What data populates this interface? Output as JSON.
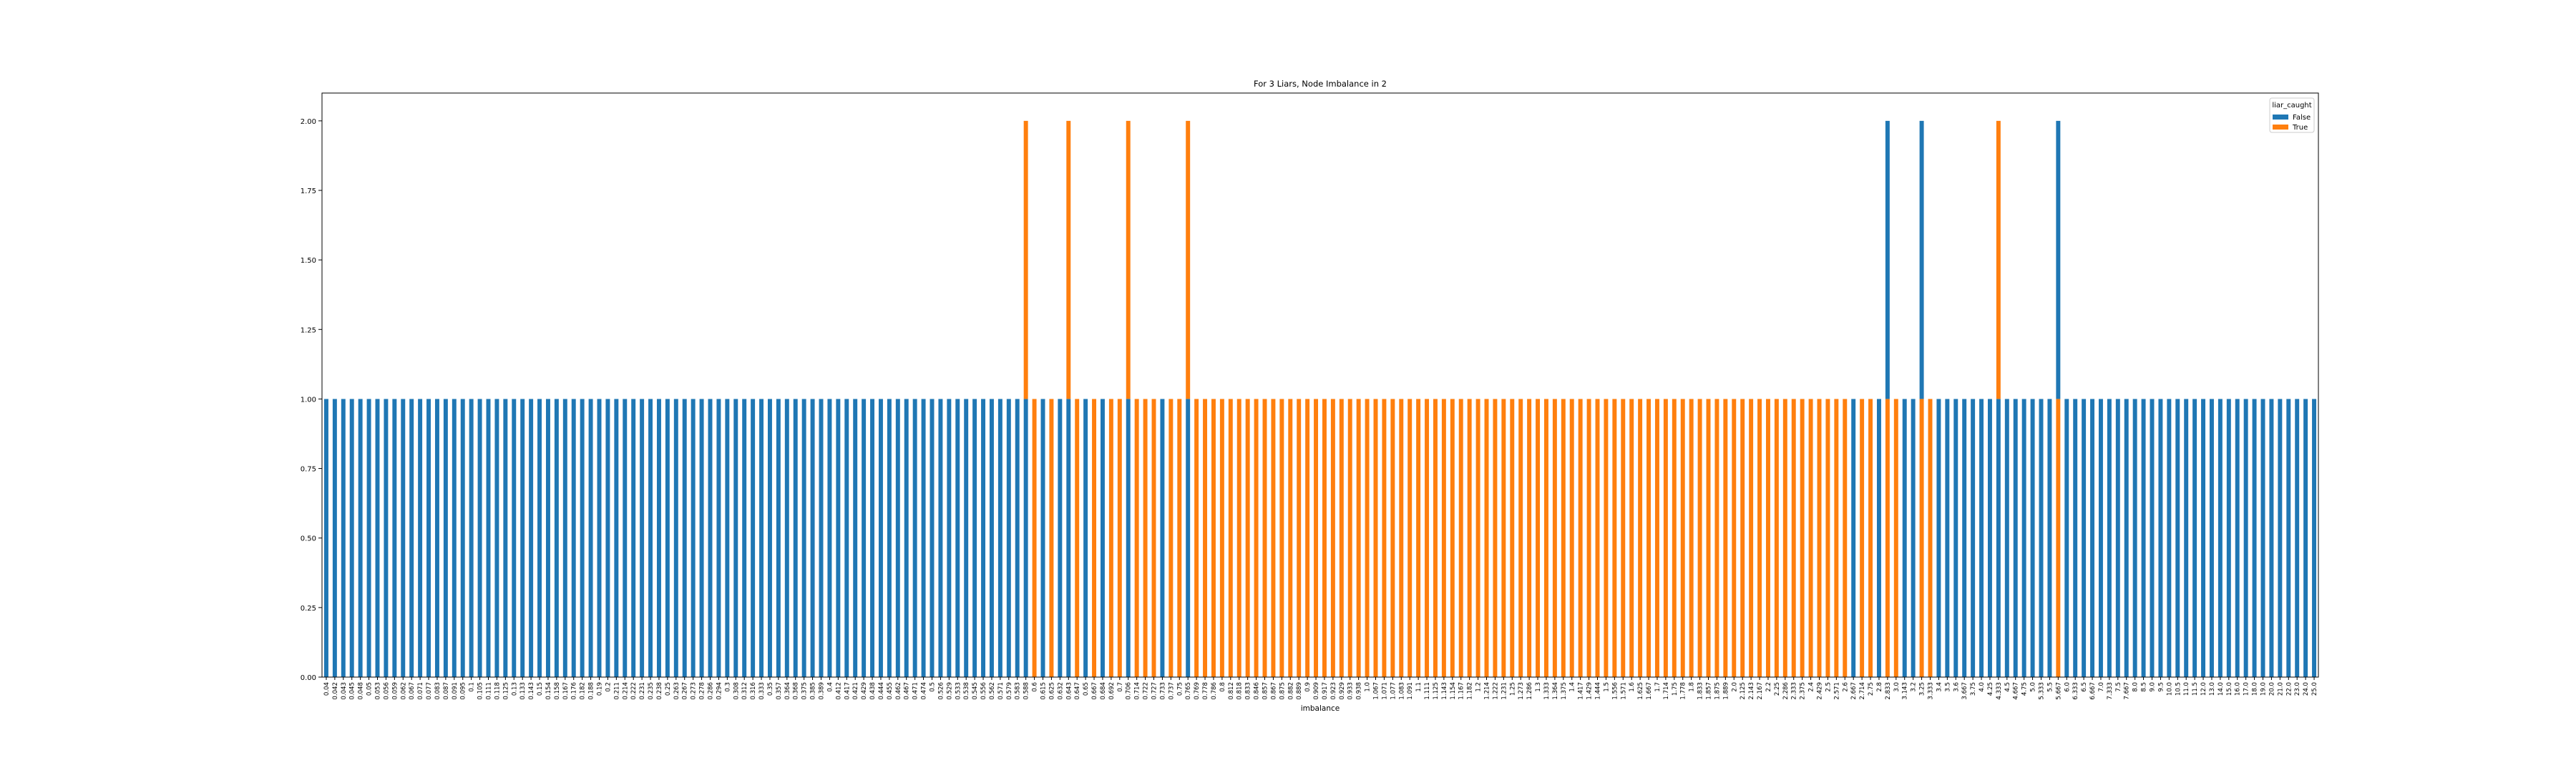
{
  "chart_data": {
    "type": "bar",
    "title": "For 3 Liars, Node Imbalance in 2",
    "xlabel": "imbalance",
    "ylabel": "",
    "ylim": [
      0,
      2.1
    ],
    "yticks": [
      "0.00",
      "0.25",
      "0.50",
      "0.75",
      "1.00",
      "1.25",
      "1.50",
      "1.75",
      "2.00"
    ],
    "grid": false,
    "legend": {
      "title": "liar_caught",
      "position": "top-right"
    },
    "colors": {
      "False": "#1f77b4",
      "True": "#ff7f0e"
    },
    "series": [
      {
        "name": "False",
        "color": "#1f77b4"
      },
      {
        "name": "True",
        "color": "#ff7f0e"
      }
    ],
    "categories": [
      "0.04",
      "0.042",
      "0.043",
      "0.045",
      "0.048",
      "0.05",
      "0.053",
      "0.056",
      "0.059",
      "0.062",
      "0.067",
      "0.071",
      "0.077",
      "0.083",
      "0.087",
      "0.091",
      "0.095",
      "0.1",
      "0.105",
      "0.111",
      "0.118",
      "0.125",
      "0.13",
      "0.133",
      "0.143",
      "0.15",
      "0.154",
      "0.158",
      "0.167",
      "0.176",
      "0.182",
      "0.188",
      "0.19",
      "0.2",
      "0.211",
      "0.214",
      "0.222",
      "0.231",
      "0.235",
      "0.238",
      "0.25",
      "0.263",
      "0.267",
      "0.273",
      "0.278",
      "0.286",
      "0.294",
      "0.3",
      "0.308",
      "0.312",
      "0.316",
      "0.333",
      "0.35",
      "0.357",
      "0.364",
      "0.368",
      "0.375",
      "0.385",
      "0.389",
      "0.4",
      "0.412",
      "0.417",
      "0.421",
      "0.429",
      "0.438",
      "0.444",
      "0.455",
      "0.462",
      "0.467",
      "0.471",
      "0.474",
      "0.5",
      "0.526",
      "0.529",
      "0.533",
      "0.538",
      "0.545",
      "0.556",
      "0.562",
      "0.571",
      "0.579",
      "0.583",
      "0.588",
      "0.6",
      "0.615",
      "0.625",
      "0.632",
      "0.643",
      "0.647",
      "0.65",
      "0.667",
      "0.684",
      "0.692",
      "0.7",
      "0.706",
      "0.714",
      "0.722",
      "0.727",
      "0.733",
      "0.737",
      "0.75",
      "0.765",
      "0.769",
      "0.778",
      "0.786",
      "0.8",
      "0.812",
      "0.818",
      "0.833",
      "0.846",
      "0.857",
      "0.867",
      "0.875",
      "0.882",
      "0.889",
      "0.9",
      "0.909",
      "0.917",
      "0.923",
      "0.929",
      "0.933",
      "0.938",
      "1.0",
      "1.067",
      "1.071",
      "1.077",
      "1.083",
      "1.091",
      "1.1",
      "1.111",
      "1.125",
      "1.143",
      "1.154",
      "1.167",
      "1.182",
      "1.2",
      "1.214",
      "1.222",
      "1.231",
      "1.25",
      "1.273",
      "1.286",
      "1.3",
      "1.333",
      "1.364",
      "1.375",
      "1.4",
      "1.417",
      "1.429",
      "1.444",
      "1.5",
      "1.556",
      "1.571",
      "1.6",
      "1.625",
      "1.667",
      "1.7",
      "1.714",
      "1.75",
      "1.778",
      "1.8",
      "1.833",
      "1.857",
      "1.875",
      "1.889",
      "2.0",
      "2.125",
      "2.143",
      "2.167",
      "2.2",
      "2.25",
      "2.286",
      "2.333",
      "2.375",
      "2.4",
      "2.429",
      "2.5",
      "2.571",
      "2.6",
      "2.667",
      "2.714",
      "2.75",
      "2.8",
      "2.833",
      "3.0",
      "3.143",
      "3.2",
      "3.25",
      "3.333",
      "3.4",
      "3.5",
      "3.6",
      "3.667",
      "3.75",
      "4.0",
      "4.25",
      "4.333",
      "4.5",
      "4.667",
      "4.75",
      "5.0",
      "5.333",
      "5.5",
      "5.667",
      "6.0",
      "6.333",
      "6.5",
      "6.667",
      "7.0",
      "7.333",
      "7.5",
      "7.667",
      "8.0",
      "8.5",
      "9.0",
      "9.5",
      "10.0",
      "10.5",
      "11.0",
      "11.5",
      "12.0",
      "13.0",
      "14.0",
      "15.0",
      "16.0",
      "17.0",
      "18.0",
      "19.0",
      "20.0",
      "21.0",
      "22.0",
      "23.0",
      "24.0",
      "25.0"
    ],
    "stacks": [
      [
        "F",
        "1"
      ],
      [
        "F",
        "1"
      ],
      [
        "F",
        "1"
      ],
      [
        "F",
        "1"
      ],
      [
        "F",
        "1"
      ],
      [
        "F",
        "1"
      ],
      [
        "F",
        "1"
      ],
      [
        "F",
        "1"
      ],
      [
        "F",
        "1"
      ],
      [
        "F",
        "1"
      ],
      [
        "F",
        "1"
      ],
      [
        "F",
        "1"
      ],
      [
        "F",
        "1"
      ],
      [
        "F",
        "1"
      ],
      [
        "F",
        "1"
      ],
      [
        "F",
        "1"
      ],
      [
        "F",
        "1"
      ],
      [
        "F",
        "1"
      ],
      [
        "F",
        "1"
      ],
      [
        "F",
        "1"
      ],
      [
        "F",
        "1"
      ],
      [
        "F",
        "1"
      ],
      [
        "F",
        "1"
      ],
      [
        "F",
        "1"
      ],
      [
        "F",
        "1"
      ],
      [
        "F",
        "1"
      ],
      [
        "F",
        "1"
      ],
      [
        "F",
        "1"
      ],
      [
        "F",
        "1"
      ],
      [
        "F",
        "1"
      ],
      [
        "F",
        "1"
      ],
      [
        "F",
        "1"
      ],
      [
        "F",
        "1"
      ],
      [
        "F",
        "1"
      ],
      [
        "F",
        "1"
      ],
      [
        "F",
        "1"
      ],
      [
        "F",
        "1"
      ],
      [
        "F",
        "1"
      ],
      [
        "F",
        "1"
      ],
      [
        "F",
        "1"
      ],
      [
        "F",
        "1"
      ],
      [
        "F",
        "1"
      ],
      [
        "F",
        "1"
      ],
      [
        "F",
        "1"
      ],
      [
        "F",
        "1"
      ],
      [
        "F",
        "1"
      ],
      [
        "F",
        "1"
      ],
      [
        "F",
        "1"
      ],
      [
        "F",
        "1"
      ],
      [
        "F",
        "1"
      ],
      [
        "F",
        "1"
      ],
      [
        "F",
        "1"
      ],
      [
        "F",
        "1"
      ],
      [
        "F",
        "1"
      ],
      [
        "F",
        "1"
      ],
      [
        "F",
        "1"
      ],
      [
        "F",
        "1"
      ],
      [
        "F",
        "1"
      ],
      [
        "F",
        "1"
      ],
      [
        "F",
        "1"
      ],
      [
        "F",
        "1"
      ],
      [
        "F",
        "1"
      ],
      [
        "F",
        "1"
      ],
      [
        "F",
        "1"
      ],
      [
        "F",
        "1"
      ],
      [
        "F",
        "1"
      ],
      [
        "F",
        "1"
      ],
      [
        "F",
        "1"
      ],
      [
        "F",
        "1"
      ],
      [
        "F",
        "1"
      ],
      [
        "F",
        "1"
      ],
      [
        "F",
        "1"
      ],
      [
        "F",
        "1"
      ],
      [
        "F",
        "1"
      ],
      [
        "F",
        "1"
      ],
      [
        "F",
        "1"
      ],
      [
        "F",
        "1"
      ],
      [
        "F",
        "1"
      ],
      [
        "F",
        "1"
      ],
      [
        "F",
        "1"
      ],
      [
        "F",
        "1"
      ],
      [
        "F",
        "1"
      ],
      [
        "F",
        "1",
        "T",
        "1"
      ],
      [
        "T",
        "1"
      ],
      [
        "F",
        "1"
      ],
      [
        "T",
        "1"
      ],
      [
        "F",
        "1"
      ],
      [
        "F",
        "1",
        "T",
        "1"
      ],
      [
        "T",
        "1"
      ],
      [
        "F",
        "1"
      ],
      [
        "T",
        "1"
      ],
      [
        "F",
        "1"
      ],
      [
        "T",
        "1"
      ],
      [
        "T",
        "1"
      ],
      [
        "F",
        "1",
        "T",
        "1"
      ],
      [
        "T",
        "1"
      ],
      [
        "T",
        "1"
      ],
      [
        "T",
        "1"
      ],
      [
        "F",
        "1"
      ],
      [
        "T",
        "1"
      ],
      [
        "T",
        "1"
      ],
      [
        "F",
        "1",
        "T",
        "1"
      ],
      [
        "T",
        "1"
      ],
      [
        "T",
        "1"
      ],
      [
        "T",
        "1"
      ],
      [
        "T",
        "1"
      ],
      [
        "T",
        "1"
      ],
      [
        "T",
        "1"
      ],
      [
        "T",
        "1"
      ],
      [
        "T",
        "1"
      ],
      [
        "T",
        "1"
      ],
      [
        "T",
        "1"
      ],
      [
        "T",
        "1"
      ],
      [
        "T",
        "1"
      ],
      [
        "T",
        "1"
      ],
      [
        "T",
        "1"
      ],
      [
        "T",
        "1"
      ],
      [
        "T",
        "1"
      ],
      [
        "T",
        "1"
      ],
      [
        "T",
        "1"
      ],
      [
        "T",
        "1"
      ],
      [
        "T",
        "1"
      ],
      [
        "T",
        "1"
      ],
      [
        "T",
        "1"
      ],
      [
        "T",
        "1"
      ],
      [
        "T",
        "1"
      ],
      [
        "T",
        "1"
      ],
      [
        "T",
        "1"
      ],
      [
        "T",
        "1"
      ],
      [
        "T",
        "1"
      ],
      [
        "T",
        "1"
      ],
      [
        "T",
        "1"
      ],
      [
        "T",
        "1"
      ],
      [
        "T",
        "1"
      ],
      [
        "T",
        "1"
      ],
      [
        "T",
        "1"
      ],
      [
        "T",
        "1"
      ],
      [
        "T",
        "1"
      ],
      [
        "T",
        "1"
      ],
      [
        "T",
        "1"
      ],
      [
        "T",
        "1"
      ],
      [
        "T",
        "1"
      ],
      [
        "T",
        "1"
      ],
      [
        "T",
        "1"
      ],
      [
        "T",
        "1"
      ],
      [
        "T",
        "1"
      ],
      [
        "T",
        "1"
      ],
      [
        "T",
        "1"
      ],
      [
        "T",
        "1"
      ],
      [
        "T",
        "1"
      ],
      [
        "T",
        "1"
      ],
      [
        "T",
        "1"
      ],
      [
        "T",
        "1"
      ],
      [
        "T",
        "1"
      ],
      [
        "T",
        "1"
      ],
      [
        "T",
        "1"
      ],
      [
        "T",
        "1"
      ],
      [
        "T",
        "1"
      ],
      [
        "T",
        "1"
      ],
      [
        "T",
        "1"
      ],
      [
        "T",
        "1"
      ],
      [
        "T",
        "1"
      ],
      [
        "T",
        "1"
      ],
      [
        "T",
        "1"
      ],
      [
        "T",
        "1"
      ],
      [
        "T",
        "1"
      ],
      [
        "T",
        "1"
      ],
      [
        "T",
        "1"
      ],
      [
        "T",
        "1"
      ],
      [
        "T",
        "1"
      ],
      [
        "T",
        "1"
      ],
      [
        "T",
        "1"
      ],
      [
        "T",
        "1"
      ],
      [
        "T",
        "1"
      ],
      [
        "T",
        "1"
      ],
      [
        "T",
        "1"
      ],
      [
        "T",
        "1"
      ],
      [
        "T",
        "1"
      ],
      [
        "T",
        "1"
      ],
      [
        "F",
        "1"
      ],
      [
        "T",
        "1"
      ],
      [
        "T",
        "1"
      ],
      [
        "F",
        "1"
      ],
      [
        "T",
        "1",
        "F",
        "1"
      ],
      [
        "T",
        "1"
      ],
      [
        "F",
        "1"
      ],
      [
        "F",
        "1"
      ],
      [
        "T",
        "1",
        "F",
        "1"
      ],
      [
        "T",
        "1"
      ],
      [
        "F",
        "1"
      ],
      [
        "F",
        "1"
      ],
      [
        "F",
        "1"
      ],
      [
        "F",
        "1"
      ],
      [
        "F",
        "1"
      ],
      [
        "F",
        "1"
      ],
      [
        "F",
        "1"
      ],
      [
        "F",
        "1",
        "T",
        "1"
      ],
      [
        "F",
        "1"
      ],
      [
        "F",
        "1"
      ],
      [
        "F",
        "1"
      ],
      [
        "F",
        "1"
      ],
      [
        "F",
        "1"
      ],
      [
        "F",
        "1"
      ],
      [
        "T",
        "1",
        "F",
        "1"
      ],
      [
        "F",
        "1"
      ],
      [
        "F",
        "1"
      ],
      [
        "F",
        "1"
      ],
      [
        "F",
        "1"
      ],
      [
        "F",
        "1"
      ],
      [
        "F",
        "1"
      ],
      [
        "F",
        "1"
      ],
      [
        "F",
        "1"
      ],
      [
        "F",
        "1"
      ],
      [
        "F",
        "1"
      ],
      [
        "F",
        "1"
      ],
      [
        "F",
        "1"
      ],
      [
        "F",
        "1"
      ],
      [
        "F",
        "1"
      ],
      [
        "F",
        "1"
      ],
      [
        "F",
        "1"
      ],
      [
        "F",
        "1"
      ],
      [
        "F",
        "1"
      ],
      [
        "F",
        "1"
      ],
      [
        "F",
        "1"
      ],
      [
        "F",
        "1"
      ],
      [
        "F",
        "1"
      ],
      [
        "F",
        "1"
      ],
      [
        "F",
        "1"
      ],
      [
        "F",
        "1"
      ],
      [
        "F",
        "1"
      ],
      [
        "F",
        "1"
      ],
      [
        "F",
        "1"
      ],
      [
        "F",
        "1"
      ],
      [
        "F",
        "1"
      ]
    ]
  }
}
